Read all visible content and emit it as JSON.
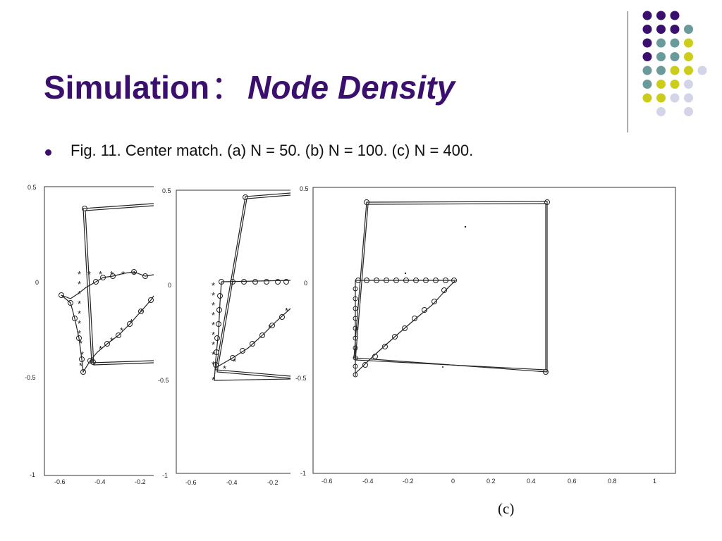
{
  "slide": {
    "title_main": "Simulation",
    "title_sep": "：",
    "title_emph": "Node Density",
    "caption": "Fig. 11. Center match. (a) N = 50. (b) N = 100. (c) N = 400.",
    "sublabel_c": "(c)"
  },
  "theme": {
    "title_color": "#3a0f6e",
    "dot_colors": {
      "purple": "#3a0f6e",
      "teal": "#6a9a9a",
      "olive": "#cccc1a",
      "lavender": "#d4d4e8"
    }
  },
  "decor": {
    "dot_grid": [
      [
        "purple",
        "purple",
        "purple",
        "none"
      ],
      [
        "purple",
        "purple",
        "purple",
        "teal"
      ],
      [
        "purple",
        "teal",
        "teal",
        "olive"
      ],
      [
        "purple",
        "teal",
        "teal",
        "olive"
      ],
      [
        "teal",
        "teal",
        "olive",
        "olive",
        "lavender"
      ],
      [
        "teal",
        "olive",
        "olive",
        "lavender"
      ],
      [
        "olive",
        "olive",
        "lavender",
        "lavender"
      ],
      [
        "none",
        "lavender",
        "none",
        "lavender"
      ]
    ]
  },
  "figures": {
    "a": {
      "x_ticks": [
        "-0.6",
        "-0.4",
        "-0.2"
      ],
      "y_ticks": [
        "0.5",
        "0",
        "-0.5",
        "-1"
      ]
    },
    "b": {
      "x_ticks": [
        "-0.6",
        "-0.4",
        "-0.2"
      ],
      "y_ticks": [
        "0.5",
        "0",
        "-0.5",
        "-1"
      ]
    },
    "c": {
      "x_ticks": [
        "-0.6",
        "-0.4",
        "-0.2",
        "0",
        "0.2",
        "0.4",
        "0.6",
        "0.8",
        "1"
      ],
      "y_ticks": [
        "0.5",
        "0",
        "-0.5",
        "-1"
      ]
    }
  }
}
